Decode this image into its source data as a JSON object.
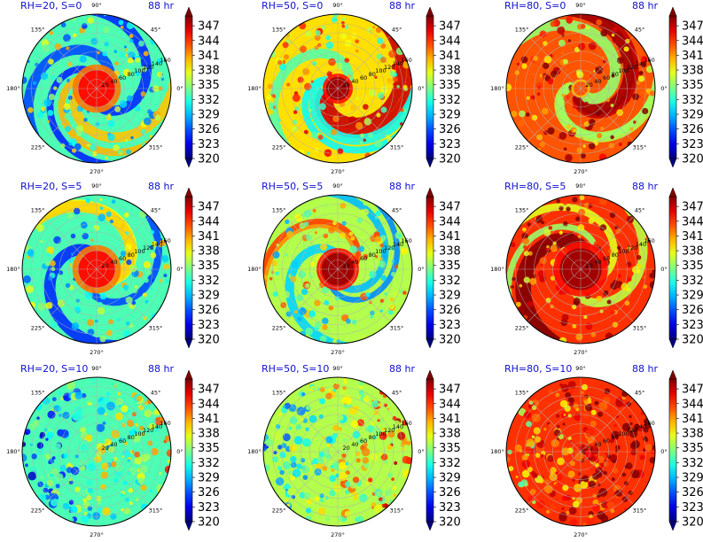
{
  "figure": {
    "chart_data": [
      {
        "type": "heatmap",
        "projection": "polar",
        "title": "RH=20, S=0",
        "time_label": "88 hr",
        "pattern": "spiral",
        "mean_value": 333,
        "core_value": 345,
        "core_radius": 40,
        "colorbar": {
          "min": 320,
          "max": 349,
          "ticks": [
            347,
            344,
            341,
            338,
            335,
            332,
            329,
            326,
            323,
            320
          ]
        }
      },
      {
        "type": "heatmap",
        "projection": "polar",
        "title": "RH=50, S=0",
        "time_label": "88 hr",
        "pattern": "spiral",
        "mean_value": 339,
        "core_value": 348,
        "core_radius": 25,
        "colorbar": {
          "min": 320,
          "max": 349,
          "ticks": [
            347,
            344,
            341,
            338,
            335,
            332,
            329,
            326,
            323,
            320
          ]
        }
      },
      {
        "type": "heatmap",
        "projection": "polar",
        "title": "RH=80, S=0",
        "time_label": "88 hr",
        "pattern": "spiral",
        "mean_value": 343,
        "core_value": 343,
        "core_radius": 15,
        "colorbar": {
          "min": 320,
          "max": 349,
          "ticks": [
            347,
            344,
            341,
            338,
            335,
            332,
            329,
            326,
            323,
            320
          ]
        }
      },
      {
        "type": "heatmap",
        "projection": "polar",
        "title": "RH=20, S=5",
        "time_label": "88 hr",
        "pattern": "spiral",
        "mean_value": 333,
        "core_value": 345,
        "core_radius": 40,
        "colorbar": {
          "min": 320,
          "max": 349,
          "ticks": [
            347,
            344,
            341,
            338,
            335,
            332,
            329,
            326,
            323,
            320
          ]
        }
      },
      {
        "type": "heatmap",
        "projection": "polar",
        "title": "RH=50, S=5",
        "time_label": "88 hr",
        "pattern": "spiral",
        "mean_value": 336,
        "core_value": 348,
        "core_radius": 35,
        "colorbar": {
          "min": 320,
          "max": 349,
          "ticks": [
            347,
            344,
            341,
            338,
            335,
            332,
            329,
            326,
            323,
            320
          ]
        }
      },
      {
        "type": "heatmap",
        "projection": "polar",
        "title": "RH=80, S=5",
        "time_label": "88 hr",
        "pattern": "spiral",
        "mean_value": 344,
        "core_value": 348,
        "core_radius": 45,
        "colorbar": {
          "min": 320,
          "max": 349,
          "ticks": [
            347,
            344,
            341,
            338,
            335,
            332,
            329,
            326,
            323,
            320
          ]
        }
      },
      {
        "type": "heatmap",
        "projection": "polar",
        "title": "RH=20, S=10",
        "time_label": "88 hr",
        "pattern": "sheared",
        "mean_value": 333,
        "core_value": 333,
        "core_radius": 0,
        "colorbar": {
          "min": 320,
          "max": 349,
          "ticks": [
            347,
            344,
            341,
            338,
            335,
            332,
            329,
            326,
            323,
            320
          ]
        }
      },
      {
        "type": "heatmap",
        "projection": "polar",
        "title": "RH=50, S=10",
        "time_label": "88 hr",
        "pattern": "sheared",
        "mean_value": 336,
        "core_value": 336,
        "core_radius": 0,
        "colorbar": {
          "min": 320,
          "max": 349,
          "ticks": [
            347,
            344,
            341,
            338,
            335,
            332,
            329,
            326,
            323,
            320
          ]
        }
      },
      {
        "type": "heatmap",
        "projection": "polar",
        "title": "RH=80, S=10",
        "time_label": "88 hr",
        "pattern": "sheared",
        "mean_value": 344,
        "core_value": 344,
        "core_radius": 0,
        "colorbar": {
          "min": 320,
          "max": 349,
          "ticks": [
            347,
            344,
            341,
            338,
            335,
            332,
            329,
            326,
            323,
            320
          ]
        }
      }
    ],
    "angle_labels": [
      "0°",
      "45°",
      "90°",
      "135°",
      "180°",
      "225°",
      "270°",
      "315°"
    ],
    "radial_labels": [
      "20",
      "40",
      "60",
      "80",
      "100",
      "120",
      "140",
      "160"
    ],
    "radial_max": 160,
    "colormap": "jet"
  }
}
